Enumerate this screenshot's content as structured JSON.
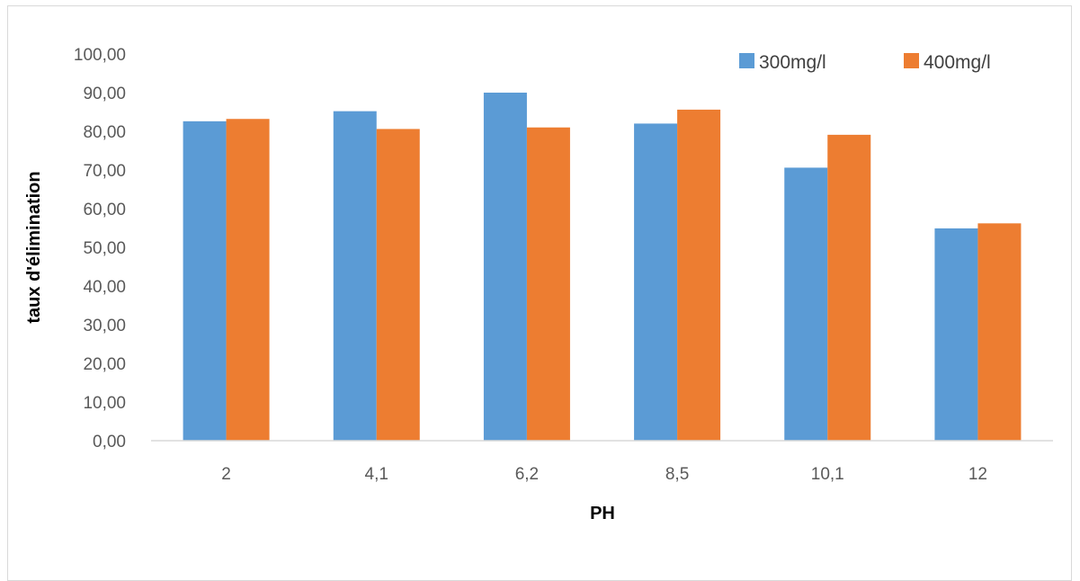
{
  "chart_data": {
    "type": "bar",
    "title": "",
    "xlabel": "PH",
    "ylabel": "taux d'élimination",
    "categories": [
      "2",
      "4,1",
      "6,2",
      "8,5",
      "10,1",
      "12"
    ],
    "series": [
      {
        "name": "300mg/l",
        "color": "#5b9bd5",
        "values": [
          82.6,
          85.2,
          90.0,
          82.0,
          70.6,
          54.9
        ]
      },
      {
        "name": "400mg/l",
        "color": "#ed7d31",
        "values": [
          83.2,
          80.6,
          81.0,
          85.6,
          79.1,
          56.2
        ]
      }
    ],
    "ylim": [
      0,
      100
    ],
    "yticks": [
      "0,00",
      "10,00",
      "20,00",
      "30,00",
      "40,00",
      "50,00",
      "60,00",
      "70,00",
      "80,00",
      "90,00",
      "100,00"
    ],
    "grid": false,
    "legend_position": "top-right"
  }
}
